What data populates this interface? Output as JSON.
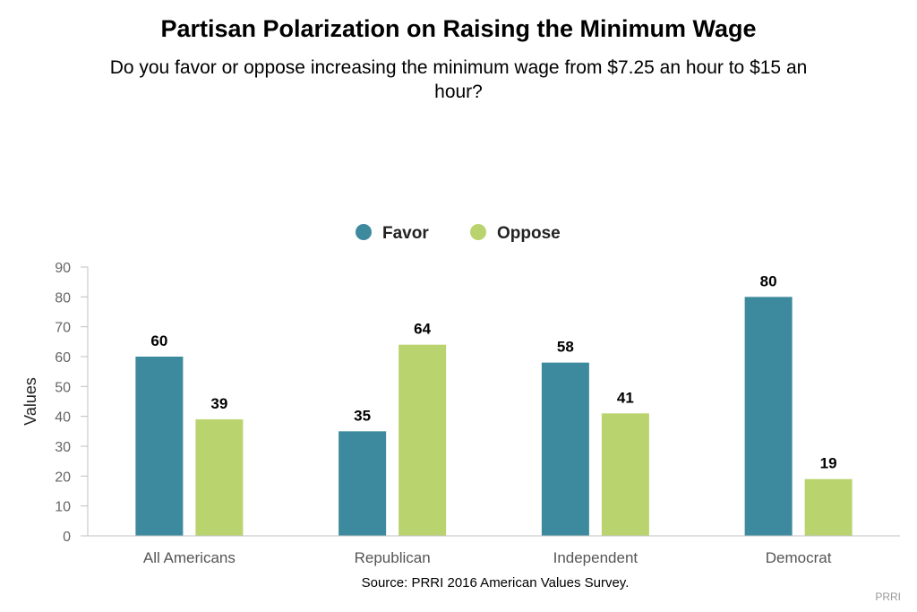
{
  "chart_data": {
    "type": "bar",
    "title": "Partisan Polarization on Raising the Minimum Wage",
    "subtitle_lines": [
      "Do you favor or oppose increasing the minimum wage from $7.25 an hour to $15 an",
      "hour?"
    ],
    "categories": [
      "All Americans",
      "Republican",
      "Independent",
      "Democrat"
    ],
    "series": [
      {
        "name": "Favor",
        "values": [
          60,
          35,
          58,
          80
        ],
        "color": "#3d8a9e"
      },
      {
        "name": "Oppose",
        "values": [
          39,
          64,
          41,
          19
        ],
        "color": "#b9d46e"
      }
    ],
    "ylabel": "Values",
    "xlabel": "",
    "ylim": [
      0,
      90
    ],
    "yticks": [
      0,
      10,
      20,
      30,
      40,
      50,
      60,
      70,
      80,
      90
    ],
    "grid": false,
    "legend_position": "top-center",
    "data_labels": true,
    "source": "Source: PRRI 2016 American Values Survey.",
    "credit": "PRRI"
  }
}
